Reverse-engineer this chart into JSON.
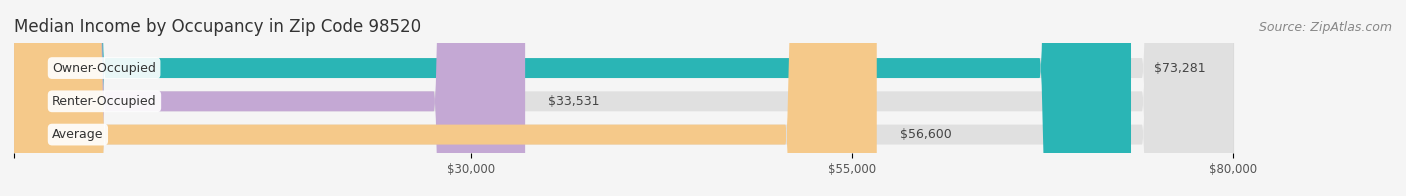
{
  "title": "Median Income by Occupancy in Zip Code 98520",
  "source": "Source: ZipAtlas.com",
  "categories": [
    "Owner-Occupied",
    "Renter-Occupied",
    "Average"
  ],
  "values": [
    73281,
    33531,
    56600
  ],
  "labels": [
    "$73,281",
    "$33,531",
    "$56,600"
  ],
  "bar_colors": [
    "#2ab5b5",
    "#c4a8d4",
    "#f5c98a"
  ],
  "xmax": 80000,
  "xticks": [
    0,
    30000,
    55000,
    80000
  ],
  "xtick_labels": [
    "",
    "$30,000",
    "$55,000",
    "$80,000"
  ],
  "background_color": "#f5f5f5",
  "title_fontsize": 12,
  "source_fontsize": 9,
  "label_fontsize": 9,
  "category_fontsize": 9
}
